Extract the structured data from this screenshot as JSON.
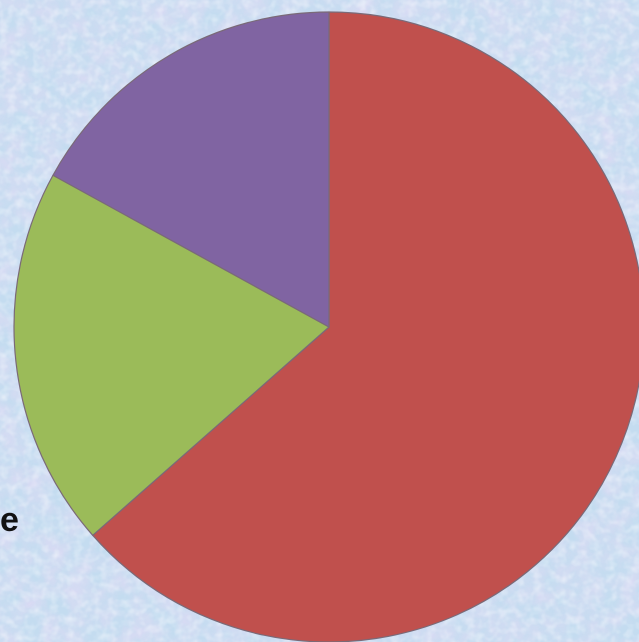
{
  "edge_text": "e",
  "colors": {
    "background": "#c6def0",
    "slice_outline": "#7a6a78"
  },
  "chart_data": {
    "type": "pie",
    "title": "",
    "start_angle_deg": 0,
    "direction": "clockwise",
    "slices": [
      {
        "value": 63.5,
        "color": "#c0504d"
      },
      {
        "value": 19.5,
        "color": "#9bbb59"
      },
      {
        "value": 17.0,
        "color": "#8064a2"
      }
    ]
  }
}
